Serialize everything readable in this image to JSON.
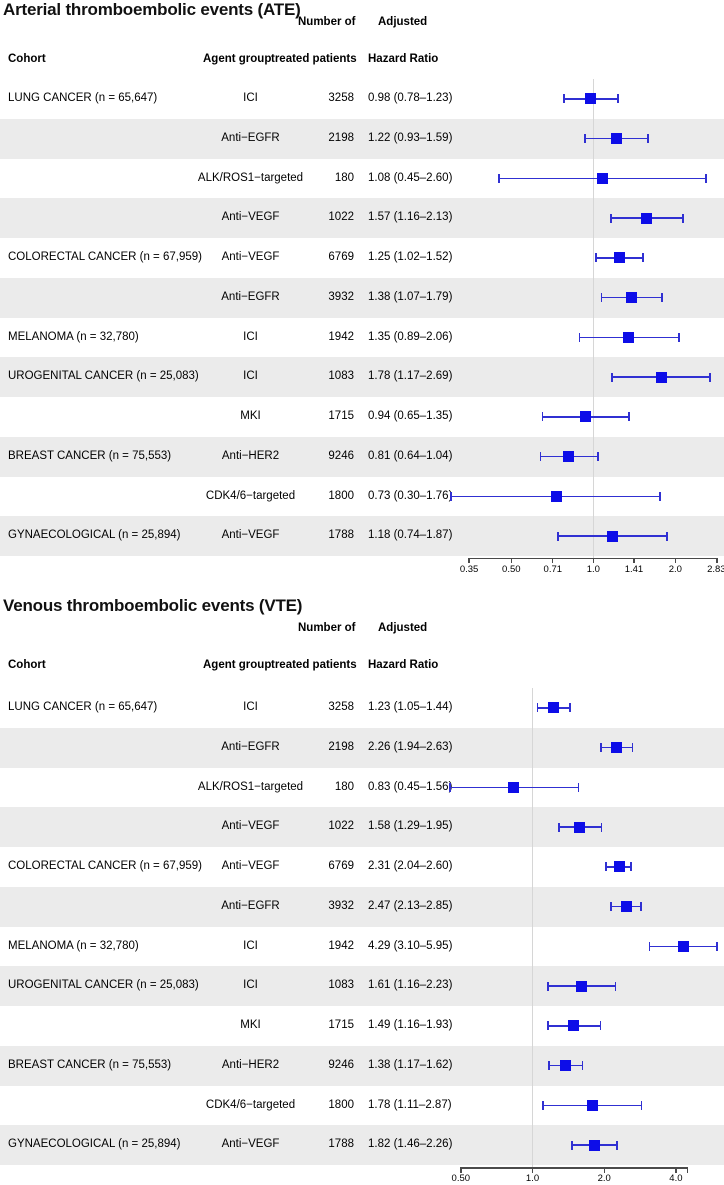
{
  "colors": {
    "marker_blue": "#0d0de8",
    "ci_line_blue": "#3030d2",
    "band_gray": "#ebebeb",
    "ref_line_gray": "#d6d6d6",
    "axis_color": "#4a4a4a",
    "text_color": "#000000"
  },
  "chart_data": [
    {
      "type": "forest",
      "title": "Arterial thromboembolic events (ATE)",
      "scale": "log2",
      "ref_value": 1.0,
      "xlim": [
        0.33,
        2.95
      ],
      "axis_ticks": [
        "0.35",
        "0.50",
        "0.71",
        "1.0",
        "1.41",
        "2.0",
        "2.83"
      ],
      "columns": {
        "cohort": "Cohort",
        "agent": "Agent group",
        "patients_line1": "Number of",
        "patients_line2": "treated patients",
        "hr_line1": "Adjusted",
        "hr_line2": "Hazard Ratio"
      },
      "rows": [
        {
          "cohort": "LUNG CANCER (n = 65,647)",
          "agent": "ICI",
          "patients": "3258",
          "hr_label": "0.98 (0.78–1.23)",
          "hr": 0.98,
          "lo": 0.78,
          "hi": 1.23
        },
        {
          "cohort": "",
          "agent": "Anti−EGFR",
          "patients": "2198",
          "hr_label": "1.22 (0.93–1.59)",
          "hr": 1.22,
          "lo": 0.93,
          "hi": 1.59
        },
        {
          "cohort": "",
          "agent": "ALK/ROS1−targeted",
          "patients": "180",
          "hr_label": "1.08 (0.45–2.60)",
          "hr": 1.08,
          "lo": 0.45,
          "hi": 2.6
        },
        {
          "cohort": "",
          "agent": "Anti−VEGF",
          "patients": "1022",
          "hr_label": "1.57 (1.16–2.13)",
          "hr": 1.57,
          "lo": 1.16,
          "hi": 2.13
        },
        {
          "cohort": "COLORECTAL CANCER (n = 67,959)",
          "agent": "Anti−VEGF",
          "patients": "6769",
          "hr_label": "1.25 (1.02–1.52)",
          "hr": 1.25,
          "lo": 1.02,
          "hi": 1.52
        },
        {
          "cohort": "",
          "agent": "Anti−EGFR",
          "patients": "3932",
          "hr_label": "1.38 (1.07–1.79)",
          "hr": 1.38,
          "lo": 1.07,
          "hi": 1.79
        },
        {
          "cohort": "MELANOMA (n = 32,780)",
          "agent": "ICI",
          "patients": "1942",
          "hr_label": "1.35 (0.89–2.06)",
          "hr": 1.35,
          "lo": 0.89,
          "hi": 2.06
        },
        {
          "cohort": "UROGENITAL CANCER (n = 25,083)",
          "agent": "ICI",
          "patients": "1083",
          "hr_label": "1.78 (1.17–2.69)",
          "hr": 1.78,
          "lo": 1.17,
          "hi": 2.69
        },
        {
          "cohort": "",
          "agent": "MKI",
          "patients": "1715",
          "hr_label": "0.94 (0.65–1.35)",
          "hr": 0.94,
          "lo": 0.65,
          "hi": 1.35
        },
        {
          "cohort": "BREAST CANCER (n = 75,553)",
          "agent": "Anti−HER2",
          "patients": "9246",
          "hr_label": "0.81 (0.64–1.04)",
          "hr": 0.81,
          "lo": 0.64,
          "hi": 1.04
        },
        {
          "cohort": "",
          "agent": "CDK4/6−targeted",
          "patients": "1800",
          "hr_label": "0.73 (0.30–1.76)",
          "hr": 0.73,
          "lo": 0.3,
          "hi": 1.76
        },
        {
          "cohort": "GYNAECOLOGICAL (n = 25,894)",
          "agent": "Anti−VEGF",
          "patients": "1788",
          "hr_label": "1.18 (0.74–1.87)",
          "hr": 1.18,
          "lo": 0.74,
          "hi": 1.87
        }
      ]
    },
    {
      "type": "forest",
      "title": "Venous thromboembolic events (VTE)",
      "scale": "log2",
      "ref_value": 1.0,
      "xlim": [
        0.45,
        6.0
      ],
      "axis_ticks": [
        "0.50",
        "1.0",
        "2.0",
        "4.0"
      ],
      "columns": {
        "cohort": "Cohort",
        "agent": "Agent group",
        "patients_line1": "Number of",
        "patients_line2": "treated patients",
        "hr_line1": "Adjusted",
        "hr_line2": "Hazard Ratio"
      },
      "rows": [
        {
          "cohort": "LUNG CANCER (n = 65,647)",
          "agent": "ICI",
          "patients": "3258",
          "hr_label": "1.23 (1.05–1.44)",
          "hr": 1.23,
          "lo": 1.05,
          "hi": 1.44
        },
        {
          "cohort": "",
          "agent": "Anti−EGFR",
          "patients": "2198",
          "hr_label": "2.26 (1.94–2.63)",
          "hr": 2.26,
          "lo": 1.94,
          "hi": 2.63
        },
        {
          "cohort": "",
          "agent": "ALK/ROS1−targeted",
          "patients": "180",
          "hr_label": "0.83 (0.45–1.56)",
          "hr": 0.83,
          "lo": 0.45,
          "hi": 1.56
        },
        {
          "cohort": "",
          "agent": "Anti−VEGF",
          "patients": "1022",
          "hr_label": "1.58 (1.29–1.95)",
          "hr": 1.58,
          "lo": 1.29,
          "hi": 1.95
        },
        {
          "cohort": "COLORECTAL CANCER (n = 67,959)",
          "agent": "Anti−VEGF",
          "patients": "6769",
          "hr_label": "2.31 (2.04–2.60)",
          "hr": 2.31,
          "lo": 2.04,
          "hi": 2.6
        },
        {
          "cohort": "",
          "agent": "Anti−EGFR",
          "patients": "3932",
          "hr_label": "2.47 (2.13–2.85)",
          "hr": 2.47,
          "lo": 2.13,
          "hi": 2.85
        },
        {
          "cohort": "MELANOMA (n = 32,780)",
          "agent": "ICI",
          "patients": "1942",
          "hr_label": "4.29 (3.10–5.95)",
          "hr": 4.29,
          "lo": 3.1,
          "hi": 5.95
        },
        {
          "cohort": "UROGENITAL CANCER (n = 25,083)",
          "agent": "ICI",
          "patients": "1083",
          "hr_label": "1.61 (1.16–2.23)",
          "hr": 1.61,
          "lo": 1.16,
          "hi": 2.23
        },
        {
          "cohort": "",
          "agent": "MKI",
          "patients": "1715",
          "hr_label": "1.49 (1.16–1.93)",
          "hr": 1.49,
          "lo": 1.16,
          "hi": 1.93
        },
        {
          "cohort": "BREAST CANCER (n = 75,553)",
          "agent": "Anti−HER2",
          "patients": "9246",
          "hr_label": "1.38 (1.17–1.62)",
          "hr": 1.38,
          "lo": 1.17,
          "hi": 1.62
        },
        {
          "cohort": "",
          "agent": "CDK4/6−targeted",
          "patients": "1800",
          "hr_label": "1.78 (1.11–2.87)",
          "hr": 1.78,
          "lo": 1.11,
          "hi": 2.87
        },
        {
          "cohort": "GYNAECOLOGICAL (n = 25,894)",
          "agent": "Anti−VEGF",
          "patients": "1788",
          "hr_label": "1.82 (1.46–2.26)",
          "hr": 1.82,
          "lo": 1.46,
          "hi": 2.26
        }
      ]
    }
  ]
}
